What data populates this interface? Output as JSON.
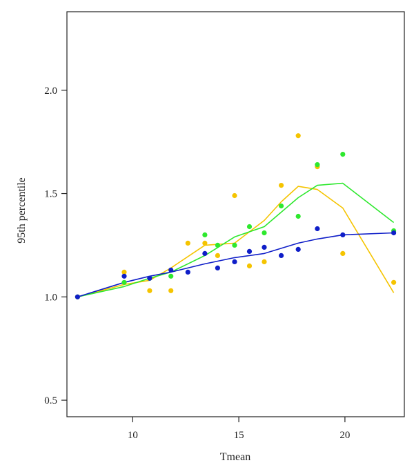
{
  "chart_data": {
    "type": "scatter",
    "title": "",
    "xlabel": "Tmean",
    "ylabel": "95th percentile",
    "xlim": [
      6.9,
      22.8
    ],
    "ylim": [
      0.42,
      2.38
    ],
    "grid": false,
    "x_ticks": [
      10,
      15,
      20
    ],
    "x_tick_labels": [
      "10",
      "15",
      "20"
    ],
    "y_ticks": [
      0.5,
      1.0,
      1.5,
      2.0
    ],
    "y_tick_labels": [
      "0.5",
      "1.0",
      "1.5",
      "2.0"
    ],
    "series": [
      {
        "color": "#f5c400",
        "points": [
          {
            "x": 7.4,
            "y": 1.0
          },
          {
            "x": 9.6,
            "y": 1.12
          },
          {
            "x": 10.8,
            "y": 1.03
          },
          {
            "x": 11.8,
            "y": 1.03
          },
          {
            "x": 12.6,
            "y": 1.26
          },
          {
            "x": 13.4,
            "y": 1.26
          },
          {
            "x": 14.0,
            "y": 1.2
          },
          {
            "x": 14.8,
            "y": 1.49
          },
          {
            "x": 15.5,
            "y": 1.15
          },
          {
            "x": 16.2,
            "y": 1.17
          },
          {
            "x": 17.0,
            "y": 1.54
          },
          {
            "x": 17.8,
            "y": 1.78
          },
          {
            "x": 18.7,
            "y": 1.63
          },
          {
            "x": 19.9,
            "y": 1.21
          },
          {
            "x": 22.3,
            "y": 1.07
          }
        ],
        "line": [
          {
            "x": 7.4,
            "y": 1.0
          },
          {
            "x": 9.6,
            "y": 1.06
          },
          {
            "x": 10.8,
            "y": 1.08
          },
          {
            "x": 11.8,
            "y": 1.14
          },
          {
            "x": 13.4,
            "y": 1.25
          },
          {
            "x": 14.8,
            "y": 1.26
          },
          {
            "x": 16.2,
            "y": 1.37
          },
          {
            "x": 17.0,
            "y": 1.46
          },
          {
            "x": 17.8,
            "y": 1.535
          },
          {
            "x": 18.7,
            "y": 1.52
          },
          {
            "x": 19.9,
            "y": 1.43
          },
          {
            "x": 22.3,
            "y": 1.02
          }
        ]
      },
      {
        "color": "#2ee82e",
        "points": [
          {
            "x": 7.4,
            "y": 1.0
          },
          {
            "x": 9.6,
            "y": 1.07
          },
          {
            "x": 10.8,
            "y": 1.09
          },
          {
            "x": 11.8,
            "y": 1.1
          },
          {
            "x": 13.4,
            "y": 1.3
          },
          {
            "x": 14.0,
            "y": 1.25
          },
          {
            "x": 14.8,
            "y": 1.25
          },
          {
            "x": 15.5,
            "y": 1.34
          },
          {
            "x": 16.2,
            "y": 1.31
          },
          {
            "x": 17.0,
            "y": 1.44
          },
          {
            "x": 17.8,
            "y": 1.39
          },
          {
            "x": 18.7,
            "y": 1.64
          },
          {
            "x": 19.9,
            "y": 1.69
          },
          {
            "x": 22.3,
            "y": 1.32
          }
        ],
        "line": [
          {
            "x": 7.4,
            "y": 1.0
          },
          {
            "x": 9.6,
            "y": 1.05
          },
          {
            "x": 10.8,
            "y": 1.09
          },
          {
            "x": 11.8,
            "y": 1.12
          },
          {
            "x": 13.4,
            "y": 1.2
          },
          {
            "x": 14.8,
            "y": 1.29
          },
          {
            "x": 16.2,
            "y": 1.34
          },
          {
            "x": 17.8,
            "y": 1.48
          },
          {
            "x": 18.7,
            "y": 1.54
          },
          {
            "x": 19.9,
            "y": 1.55
          },
          {
            "x": 22.3,
            "y": 1.36
          }
        ]
      },
      {
        "color": "#0f1ec8",
        "points": [
          {
            "x": 7.4,
            "y": 1.0
          },
          {
            "x": 9.6,
            "y": 1.1
          },
          {
            "x": 10.8,
            "y": 1.09
          },
          {
            "x": 11.8,
            "y": 1.13
          },
          {
            "x": 12.6,
            "y": 1.12
          },
          {
            "x": 13.4,
            "y": 1.21
          },
          {
            "x": 14.0,
            "y": 1.14
          },
          {
            "x": 14.8,
            "y": 1.17
          },
          {
            "x": 15.5,
            "y": 1.22
          },
          {
            "x": 16.2,
            "y": 1.24
          },
          {
            "x": 17.0,
            "y": 1.2
          },
          {
            "x": 17.8,
            "y": 1.23
          },
          {
            "x": 18.7,
            "y": 1.33
          },
          {
            "x": 19.9,
            "y": 1.3
          },
          {
            "x": 22.3,
            "y": 1.31
          }
        ],
        "line": [
          {
            "x": 7.4,
            "y": 1.0
          },
          {
            "x": 9.6,
            "y": 1.07
          },
          {
            "x": 10.8,
            "y": 1.1
          },
          {
            "x": 11.8,
            "y": 1.12
          },
          {
            "x": 13.4,
            "y": 1.16
          },
          {
            "x": 14.8,
            "y": 1.19
          },
          {
            "x": 16.2,
            "y": 1.21
          },
          {
            "x": 17.8,
            "y": 1.26
          },
          {
            "x": 18.7,
            "y": 1.28
          },
          {
            "x": 19.9,
            "y": 1.3
          },
          {
            "x": 22.3,
            "y": 1.31
          }
        ]
      }
    ]
  }
}
